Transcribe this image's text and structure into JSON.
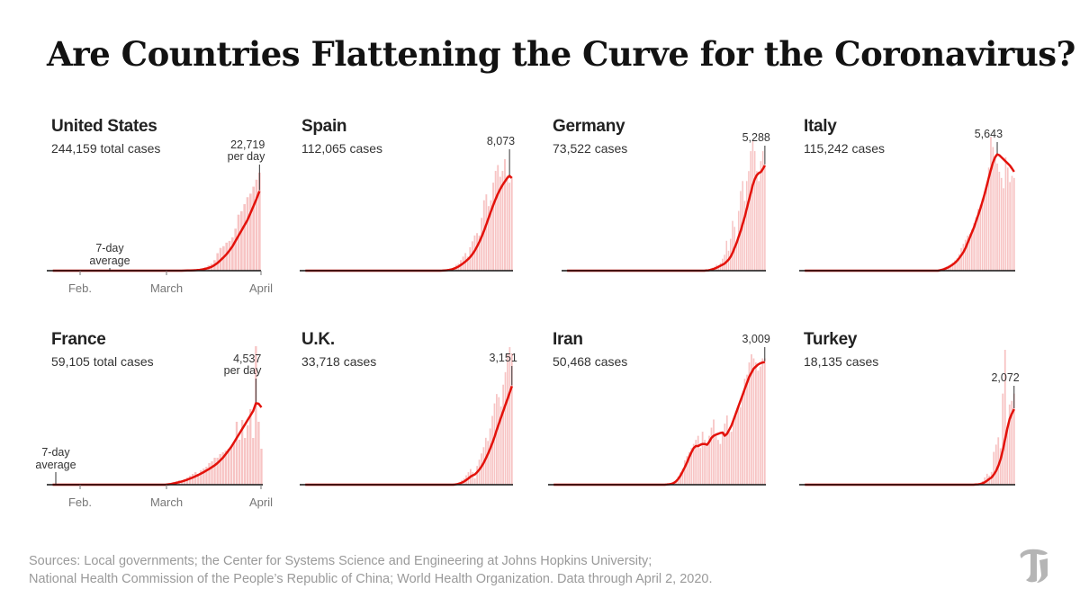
{
  "page": {
    "title": "Are Countries Flattening the Curve for the Coronavirus?",
    "sources_line1": "Sources: Local governments; the Center for Systems Science and Engineering at Johns Hopkins University;",
    "sources_line2": "National Health Commission of the People’s Republic of China; World Health Organization. Data through April 2, 2020.",
    "logo": "nyt-t-logo"
  },
  "colors": {
    "bar": "#f7c4c4",
    "line": "#e3120b",
    "axis": "#111111",
    "annotation": "#333333",
    "tick": "#777777"
  },
  "chart_data": [
    {
      "type": "bar+line",
      "country": "United States",
      "cases_label": "244,159 total cases",
      "peak_value_label": "22,719",
      "peak_sub_label": "per day",
      "x_ticks": [
        "Feb.",
        "March",
        "April"
      ],
      "avg_label": [
        "7-day",
        "average"
      ],
      "daily": [
        0,
        0,
        0,
        0,
        0,
        0,
        0,
        0,
        0,
        0,
        0,
        0,
        0,
        0,
        0,
        0,
        0,
        0,
        0,
        0,
        0,
        0,
        0,
        0,
        0,
        0,
        0,
        0,
        0,
        0,
        0,
        0,
        0,
        0,
        0,
        0,
        0,
        0,
        0,
        0,
        0,
        0,
        0,
        20,
        40,
        60,
        120,
        200,
        300,
        500,
        700,
        1000,
        1500,
        2000,
        3000,
        5000,
        6500,
        7000,
        8000,
        8500,
        9500,
        12000,
        16000,
        17000,
        19000,
        21000,
        22000,
        24000,
        26000,
        28000
      ],
      "avg": [
        0,
        0,
        0,
        0,
        0,
        0,
        0,
        0,
        0,
        0,
        0,
        0,
        0,
        0,
        0,
        0,
        0,
        0,
        0,
        0,
        0,
        0,
        0,
        0,
        0,
        0,
        0,
        0,
        0,
        0,
        0,
        0,
        0,
        0,
        0,
        0,
        0,
        0,
        0,
        0,
        0,
        0,
        0,
        10,
        20,
        40,
        60,
        100,
        150,
        230,
        350,
        550,
        800,
        1100,
        1600,
        2200,
        3000,
        3800,
        4700,
        5800,
        7000,
        8500,
        10000,
        11500,
        13000,
        14500,
        16500,
        18500,
        20500,
        22719
      ]
    },
    {
      "type": "bar+line",
      "country": "Spain",
      "cases_label": "112,065 cases",
      "peak_value_label": "8,073",
      "daily": [
        0,
        0,
        0,
        0,
        0,
        0,
        0,
        0,
        0,
        0,
        0,
        0,
        0,
        0,
        0,
        0,
        0,
        0,
        0,
        0,
        0,
        0,
        0,
        0,
        0,
        0,
        0,
        0,
        0,
        0,
        0,
        0,
        0,
        0,
        0,
        0,
        0,
        0,
        0,
        0,
        0,
        0,
        0,
        0,
        0,
        0,
        0,
        0,
        0,
        0,
        0,
        0,
        0,
        0,
        0,
        0,
        0,
        0,
        0,
        20,
        40,
        80,
        120,
        190,
        300,
        500,
        600,
        900,
        1200,
        1500,
        1200,
        2000,
        2500,
        3000,
        3200,
        3000,
        4500,
        6000,
        6500,
        5500,
        6000,
        7500,
        8500,
        9000,
        8000,
        8500,
        9500,
        8100,
        7500,
        8000
      ],
      "avg": [
        0,
        0,
        0,
        0,
        0,
        0,
        0,
        0,
        0,
        0,
        0,
        0,
        0,
        0,
        0,
        0,
        0,
        0,
        0,
        0,
        0,
        0,
        0,
        0,
        0,
        0,
        0,
        0,
        0,
        0,
        0,
        0,
        0,
        0,
        0,
        0,
        0,
        0,
        0,
        0,
        0,
        0,
        0,
        0,
        0,
        0,
        0,
        0,
        0,
        0,
        0,
        0,
        0,
        0,
        0,
        0,
        0,
        0,
        0,
        10,
        20,
        40,
        70,
        110,
        170,
        250,
        350,
        480,
        620,
        780,
        950,
        1150,
        1400,
        1700,
        2050,
        2450,
        2900,
        3400,
        3950,
        4500,
        5050,
        5600,
        6100,
        6550,
        6950,
        7300,
        7600,
        7900,
        8073,
        7900
      ]
    },
    {
      "type": "bar+line",
      "country": "Germany",
      "cases_label": "73,522 cases",
      "peak_value_label": "5,288",
      "daily": [
        0,
        0,
        0,
        0,
        0,
        0,
        0,
        0,
        0,
        0,
        0,
        0,
        0,
        0,
        0,
        0,
        0,
        0,
        0,
        0,
        0,
        0,
        0,
        0,
        0,
        0,
        0,
        0,
        0,
        0,
        0,
        0,
        0,
        0,
        0,
        0,
        0,
        0,
        0,
        0,
        0,
        0,
        0,
        0,
        0,
        0,
        0,
        0,
        0,
        0,
        0,
        0,
        0,
        0,
        0,
        0,
        0,
        0,
        0,
        0,
        0,
        0,
        0,
        0,
        0,
        0,
        0,
        0,
        0,
        20,
        50,
        80,
        150,
        200,
        300,
        200,
        400,
        600,
        800,
        1500,
        1000,
        1600,
        2500,
        2200,
        1500,
        3000,
        4000,
        4500,
        3500,
        4500,
        5000,
        6000,
        6500,
        6000,
        5000,
        4500,
        5500,
        6000,
        5300
      ],
      "avg": [
        0,
        0,
        0,
        0,
        0,
        0,
        0,
        0,
        0,
        0,
        0,
        0,
        0,
        0,
        0,
        0,
        0,
        0,
        0,
        0,
        0,
        0,
        0,
        0,
        0,
        0,
        0,
        0,
        0,
        0,
        0,
        0,
        0,
        0,
        0,
        0,
        0,
        0,
        0,
        0,
        0,
        0,
        0,
        0,
        0,
        0,
        0,
        0,
        0,
        0,
        0,
        0,
        0,
        0,
        0,
        0,
        0,
        0,
        0,
        0,
        0,
        0,
        0,
        0,
        0,
        0,
        0,
        0,
        0,
        10,
        20,
        40,
        70,
        100,
        150,
        200,
        250,
        300,
        350,
        450,
        550,
        700,
        900,
        1150,
        1400,
        1700,
        2000,
        2350,
        2700,
        3100,
        3500,
        3900,
        4300,
        4600,
        4800,
        4900,
        4950,
        5100,
        5288
      ]
    },
    {
      "type": "bar+line",
      "country": "Italy",
      "cases_label": "115,242 cases",
      "peak_value_label": "5,643",
      "daily": [
        0,
        0,
        0,
        0,
        0,
        0,
        0,
        0,
        0,
        0,
        0,
        0,
        0,
        0,
        0,
        0,
        0,
        0,
        0,
        0,
        0,
        0,
        0,
        0,
        0,
        0,
        0,
        0,
        0,
        0,
        0,
        0,
        0,
        0,
        0,
        0,
        0,
        0,
        0,
        0,
        0,
        0,
        0,
        0,
        0,
        0,
        0,
        0,
        0,
        0,
        0,
        0,
        0,
        0,
        0,
        0,
        0,
        0,
        0,
        0,
        0,
        0,
        0,
        0,
        50,
        100,
        150,
        200,
        250,
        300,
        400,
        500,
        600,
        800,
        1100,
        1300,
        1500,
        1700,
        1800,
        2000,
        2300,
        2600,
        3000,
        3200,
        3500,
        3800,
        4200,
        5000,
        6500,
        6000,
        5500,
        5200,
        4800,
        4500,
        4000,
        5500,
        5000,
        4300,
        4600,
        4500
      ],
      "avg": [
        0,
        0,
        0,
        0,
        0,
        0,
        0,
        0,
        0,
        0,
        0,
        0,
        0,
        0,
        0,
        0,
        0,
        0,
        0,
        0,
        0,
        0,
        0,
        0,
        0,
        0,
        0,
        0,
        0,
        0,
        0,
        0,
        0,
        0,
        0,
        0,
        0,
        0,
        0,
        0,
        0,
        0,
        0,
        0,
        0,
        0,
        0,
        0,
        0,
        0,
        0,
        0,
        0,
        0,
        0,
        0,
        0,
        0,
        0,
        0,
        0,
        0,
        0,
        0,
        20,
        50,
        80,
        120,
        170,
        230,
        300,
        380,
        480,
        600,
        750,
        900,
        1100,
        1350,
        1600,
        1850,
        2100,
        2400,
        2700,
        3000,
        3350,
        3700,
        4100,
        4500,
        4900,
        5250,
        5500,
        5643,
        5600,
        5500,
        5400,
        5300,
        5200,
        5100,
        4950,
        4800
      ]
    },
    {
      "type": "bar+line",
      "country": "France",
      "cases_label": "59,105 total cases",
      "peak_value_label": "4,537",
      "peak_sub_label": "per day",
      "x_ticks": [
        "Feb.",
        "March",
        "April"
      ],
      "avg_label": [
        "7-day",
        "average"
      ],
      "daily": [
        0,
        0,
        0,
        0,
        0,
        0,
        0,
        0,
        0,
        0,
        0,
        0,
        0,
        0,
        0,
        0,
        0,
        0,
        0,
        0,
        0,
        0,
        0,
        0,
        0,
        0,
        0,
        0,
        0,
        0,
        0,
        0,
        0,
        0,
        0,
        0,
        0,
        0,
        0,
        0,
        0,
        0,
        50,
        100,
        150,
        200,
        250,
        250,
        300,
        400,
        500,
        600,
        700,
        600,
        800,
        900,
        1000,
        1200,
        1300,
        1500,
        1500,
        1700,
        1800,
        1900,
        2000,
        2100,
        2300,
        3500,
        2500,
        3600,
        2600,
        3300,
        4200,
        2600,
        7700,
        3500,
        2000
      ],
      "avg": [
        0,
        0,
        0,
        0,
        0,
        0,
        0,
        0,
        0,
        0,
        0,
        0,
        0,
        0,
        0,
        0,
        0,
        0,
        0,
        0,
        0,
        0,
        0,
        0,
        0,
        0,
        0,
        0,
        0,
        0,
        0,
        0,
        0,
        0,
        0,
        0,
        0,
        0,
        0,
        0,
        0,
        0,
        20,
        40,
        70,
        100,
        140,
        180,
        230,
        280,
        340,
        400,
        470,
        540,
        620,
        700,
        790,
        880,
        980,
        1080,
        1200,
        1350,
        1500,
        1700,
        1900,
        2100,
        2350,
        2600,
        2850,
        3100,
        3350,
        3600,
        3850,
        4100,
        4537,
        4500,
        4300
      ]
    },
    {
      "type": "bar+line",
      "country": "U.K.",
      "cases_label": "33,718 cases",
      "peak_value_label": "3,151",
      "daily": [
        0,
        0,
        0,
        0,
        0,
        0,
        0,
        0,
        0,
        0,
        0,
        0,
        0,
        0,
        0,
        0,
        0,
        0,
        0,
        0,
        0,
        0,
        0,
        0,
        0,
        0,
        0,
        0,
        0,
        0,
        0,
        0,
        0,
        0,
        0,
        0,
        0,
        0,
        0,
        0,
        0,
        0,
        0,
        0,
        0,
        0,
        0,
        0,
        0,
        0,
        0,
        0,
        0,
        0,
        0,
        0,
        0,
        0,
        0,
        0,
        0,
        0,
        0,
        0,
        0,
        0,
        0,
        0,
        0,
        20,
        50,
        80,
        150,
        200,
        300,
        400,
        500,
        400,
        200,
        600,
        800,
        1000,
        1200,
        1500,
        1400,
        1800,
        2200,
        2600,
        2900,
        2800,
        2500,
        3200,
        3600,
        4200,
        4400,
        4200
      ],
      "avg": [
        0,
        0,
        0,
        0,
        0,
        0,
        0,
        0,
        0,
        0,
        0,
        0,
        0,
        0,
        0,
        0,
        0,
        0,
        0,
        0,
        0,
        0,
        0,
        0,
        0,
        0,
        0,
        0,
        0,
        0,
        0,
        0,
        0,
        0,
        0,
        0,
        0,
        0,
        0,
        0,
        0,
        0,
        0,
        0,
        0,
        0,
        0,
        0,
        0,
        0,
        0,
        0,
        0,
        0,
        0,
        0,
        0,
        0,
        0,
        0,
        0,
        0,
        0,
        0,
        0,
        0,
        0,
        0,
        0,
        10,
        20,
        40,
        70,
        100,
        150,
        200,
        260,
        300,
        330,
        400,
        480,
        580,
        700,
        840,
        990,
        1150,
        1330,
        1530,
        1750,
        1950,
        2150,
        2350,
        2550,
        2750,
        2950,
        3151
      ]
    },
    {
      "type": "bar+line",
      "country": "Iran",
      "cases_label": "50,468 cases",
      "peak_value_label": "3,009",
      "daily": [
        0,
        0,
        0,
        0,
        0,
        0,
        0,
        0,
        0,
        0,
        0,
        0,
        0,
        0,
        0,
        0,
        0,
        0,
        0,
        0,
        0,
        0,
        0,
        0,
        0,
        0,
        0,
        0,
        0,
        0,
        0,
        0,
        0,
        0,
        0,
        0,
        0,
        0,
        0,
        0,
        0,
        0,
        0,
        0,
        0,
        0,
        0,
        0,
        0,
        0,
        0,
        10,
        20,
        40,
        60,
        100,
        200,
        300,
        400,
        600,
        700,
        800,
        900,
        1000,
        1100,
        1200,
        900,
        1300,
        1100,
        1000,
        1200,
        1400,
        1600,
        1200,
        1100,
        1000,
        1300,
        1500,
        1700,
        1300,
        1300,
        1600,
        1800,
        1900,
        1900,
        2200,
        2600,
        2700,
        3000,
        3200,
        3100,
        3000,
        2800,
        2900,
        3100,
        3100
      ],
      "avg": [
        0,
        0,
        0,
        0,
        0,
        0,
        0,
        0,
        0,
        0,
        0,
        0,
        0,
        0,
        0,
        0,
        0,
        0,
        0,
        0,
        0,
        0,
        0,
        0,
        0,
        0,
        0,
        0,
        0,
        0,
        0,
        0,
        0,
        0,
        0,
        0,
        0,
        0,
        0,
        0,
        0,
        0,
        0,
        0,
        0,
        0,
        0,
        0,
        0,
        0,
        0,
        5,
        10,
        20,
        40,
        80,
        140,
        220,
        320,
        430,
        550,
        680,
        800,
        900,
        950,
        950,
        980,
        1000,
        1000,
        980,
        1050,
        1150,
        1200,
        1230,
        1250,
        1270,
        1280,
        1200,
        1250,
        1350,
        1450,
        1600,
        1750,
        1900,
        2050,
        2200,
        2350,
        2500,
        2650,
        2750,
        2850,
        2900,
        2950,
        2980,
        3000,
        3009
      ]
    },
    {
      "type": "bar+line",
      "country": "Turkey",
      "cases_label": "18,135 cases",
      "peak_value_label": "2,072",
      "daily": [
        0,
        0,
        0,
        0,
        0,
        0,
        0,
        0,
        0,
        0,
        0,
        0,
        0,
        0,
        0,
        0,
        0,
        0,
        0,
        0,
        0,
        0,
        0,
        0,
        0,
        0,
        0,
        0,
        0,
        0,
        0,
        0,
        0,
        0,
        0,
        0,
        0,
        0,
        0,
        0,
        0,
        0,
        0,
        0,
        0,
        0,
        0,
        0,
        0,
        0,
        0,
        0,
        0,
        0,
        0,
        0,
        0,
        0,
        0,
        0,
        0,
        0,
        0,
        0,
        0,
        0,
        0,
        0,
        0,
        0,
        0,
        0,
        0,
        0,
        0,
        0,
        10,
        20,
        50,
        100,
        200,
        300,
        250,
        350,
        900,
        1100,
        1300,
        1000,
        2500,
        3700,
        1500,
        2200,
        2300,
        2500
      ],
      "avg": [
        0,
        0,
        0,
        0,
        0,
        0,
        0,
        0,
        0,
        0,
        0,
        0,
        0,
        0,
        0,
        0,
        0,
        0,
        0,
        0,
        0,
        0,
        0,
        0,
        0,
        0,
        0,
        0,
        0,
        0,
        0,
        0,
        0,
        0,
        0,
        0,
        0,
        0,
        0,
        0,
        0,
        0,
        0,
        0,
        0,
        0,
        0,
        0,
        0,
        0,
        0,
        0,
        0,
        0,
        0,
        0,
        0,
        0,
        0,
        0,
        0,
        0,
        0,
        0,
        0,
        0,
        0,
        0,
        0,
        0,
        0,
        0,
        0,
        0,
        0,
        0,
        5,
        10,
        20,
        40,
        70,
        110,
        160,
        200,
        280,
        380,
        520,
        700,
        950,
        1250,
        1550,
        1800,
        1950,
        2072
      ]
    }
  ]
}
